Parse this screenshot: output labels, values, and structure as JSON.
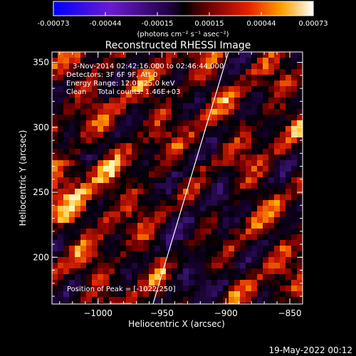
{
  "colorbar": {
    "tick_labels": [
      "-0.00073",
      "-0.00044",
      "-0.00015",
      "0.00015",
      "0.00044",
      "0.00073"
    ],
    "units": "(photons cm⁻² s⁻¹ asec⁻²)"
  },
  "title": "Reconstructed RHESSI Image",
  "info": {
    "time_range": "3-Nov-2014 02:42:16.000 to 02:46:44.000",
    "detectors": "Detectors: 3F 6F 9F, Att 0",
    "energy_range": "Energy Range: 12.0 - 25.0 keV",
    "clean": "Clean     Total counts: 1.46E+03",
    "peak_position": "Position of Peak = [-1022,250]"
  },
  "axes": {
    "xlabel": "Heliocentric X (arcsec)",
    "ylabel": "Heliocentric Y (arcsec)",
    "x_ticks": [
      -1000,
      -950,
      -900,
      -850
    ],
    "y_ticks": [
      200,
      250,
      300,
      350
    ],
    "x_tick_labels": [
      "−1000",
      "−950",
      "−900",
      "−850"
    ],
    "y_tick_labels": [
      "200",
      "250",
      "300",
      "350"
    ],
    "xlim": [
      -1036,
      -840
    ],
    "ylim": [
      164,
      358
    ]
  },
  "limb_line": {
    "x": [
      -957,
      -898
    ],
    "y": [
      164,
      358
    ]
  },
  "footer": {
    "date": "19-May-2022 00:12"
  }
}
